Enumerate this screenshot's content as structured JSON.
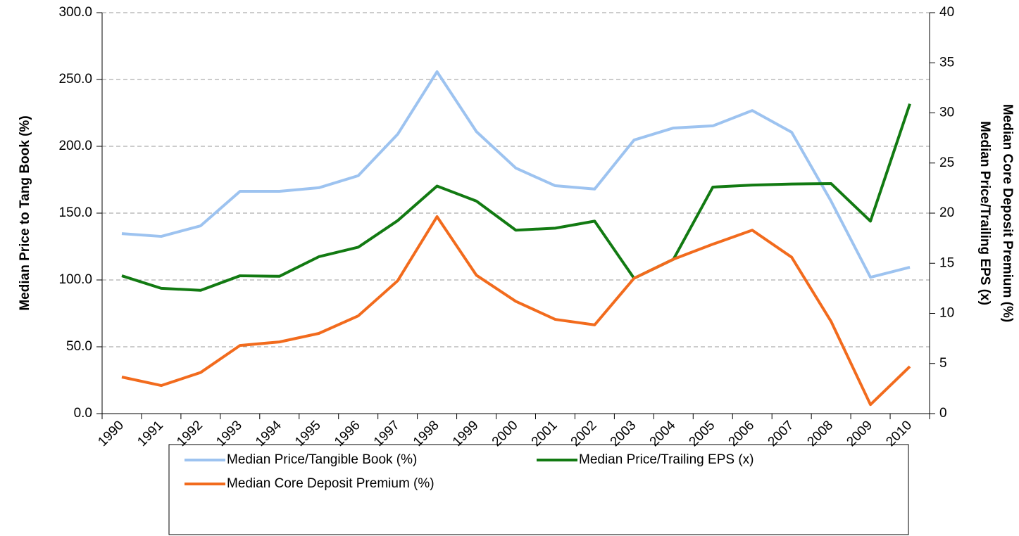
{
  "chart_data": {
    "type": "line",
    "y_label": "Median Price to Tang Book (%)",
    "y2_labels": [
      "Median Core Deposit Premium (%)",
      "Median Price/Trailing EPS (x)"
    ],
    "categories": [
      "1990",
      "1991",
      "1992",
      "1993",
      "1994",
      "1995",
      "1996",
      "1997",
      "1998",
      "1999",
      "2000",
      "2001",
      "2002",
      "2003",
      "2004",
      "2005",
      "2006",
      "2007",
      "2008",
      "2009",
      "2010"
    ],
    "series": [
      {
        "name": "Median Price/Tangible Book (%)",
        "color": "#9dc3f0",
        "values": [
          134.7,
          132.6,
          140.5,
          166.3,
          166.3,
          169.0,
          178.0,
          209.0,
          255.8,
          211.0,
          183.7,
          170.5,
          168.0,
          204.7,
          213.7,
          215.3,
          226.8,
          210.5,
          159.0,
          102.0,
          109.5
        ]
      },
      {
        "name": "Median Price/Trailing EPS (x)",
        "color": "#127a12",
        "axis": "y2",
        "values": [
          13.75,
          12.5,
          12.3,
          13.75,
          13.7,
          15.65,
          16.6,
          19.25,
          22.7,
          21.2,
          18.3,
          18.5,
          19.2,
          13.5,
          15.4,
          22.6,
          22.8,
          22.9,
          22.95,
          19.2,
          30.9
        ]
      },
      {
        "name": "Median Core Deposit Premium (%)",
        "color": "#f26b1d",
        "axis": "y2",
        "values": [
          3.65,
          2.8,
          4.1,
          6.8,
          7.15,
          8.0,
          9.75,
          13.25,
          19.65,
          13.8,
          11.2,
          9.4,
          8.85,
          13.5,
          15.4,
          16.9,
          18.3,
          15.6,
          9.2,
          0.9,
          4.7
        ]
      }
    ],
    "ylim": [
      0,
      300
    ],
    "yticks": [
      {
        "value": 0,
        "label": "0.0"
      },
      {
        "value": 50,
        "label": "50.0"
      },
      {
        "value": 100,
        "label": "100.0"
      },
      {
        "value": 150,
        "label": "150.0"
      },
      {
        "value": 200,
        "label": "200.0"
      },
      {
        "value": 250,
        "label": "250.0"
      },
      {
        "value": 300,
        "label": "300.0"
      }
    ],
    "y2lim": [
      0,
      40
    ],
    "y2ticks": [
      0,
      5,
      10,
      15,
      20,
      25,
      30,
      35,
      40
    ],
    "grid": true
  }
}
